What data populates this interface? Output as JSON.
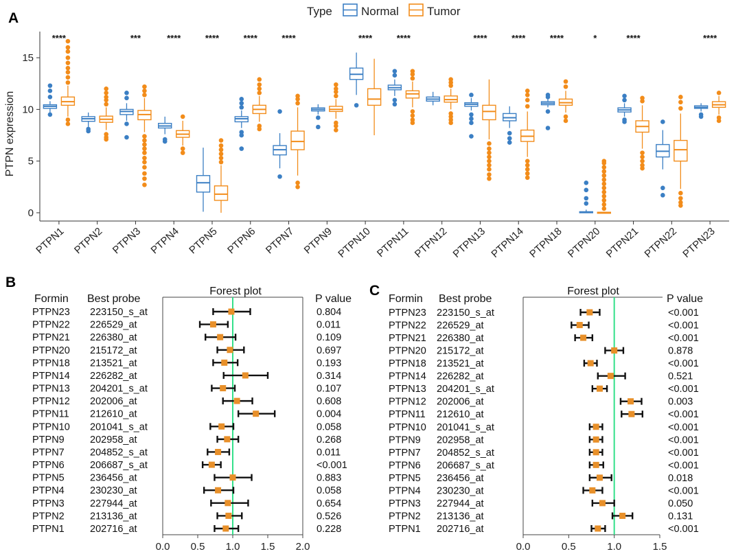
{
  "colors": {
    "normal": "#3B7FC4",
    "tumor": "#F28C1A",
    "refline": "#33E08A",
    "point": "#E8902A",
    "ci": "#111111"
  },
  "panelA": {
    "label": "A",
    "legend": {
      "title": "Type",
      "items": [
        {
          "name": "Normal"
        },
        {
          "name": "Tumor"
        }
      ]
    },
    "chart_data": {
      "type": "box",
      "title": "",
      "xlabel": "",
      "ylabel": "PTPN expression",
      "ylim": [
        -0.8,
        17
      ],
      "yticks": [
        0,
        5,
        10,
        15
      ],
      "categories": [
        "PTPN1",
        "PTPN2",
        "PTPN3",
        "PTPN4",
        "PTPN5",
        "PTPN6",
        "PTPN7",
        "PTPN9",
        "PTPN10",
        "PTPN11",
        "PTPN12",
        "PTPN13",
        "PTPN14",
        "PTPN18",
        "PTPN20",
        "PTPN21",
        "PTPN22",
        "PTPN23"
      ],
      "significance": [
        "****",
        "",
        "***",
        "****",
        "****",
        "****",
        "****",
        "",
        "****",
        "****",
        "",
        "****",
        "****",
        "****",
        "*",
        "****",
        "",
        "****"
      ],
      "series": [
        {
          "name": "Normal",
          "boxes": [
            {
              "q1": 10.1,
              "med": 10.3,
              "q3": 10.45,
              "wlo": 9.7,
              "whi": 10.8,
              "out": [
                9.5,
                11.2,
                11.8,
                12.3
              ]
            },
            {
              "q1": 8.85,
              "med": 9.1,
              "q3": 9.3,
              "wlo": 8.3,
              "whi": 9.7,
              "out": [
                7.9,
                8.1
              ]
            },
            {
              "q1": 9.5,
              "med": 9.8,
              "q3": 10.0,
              "wlo": 8.9,
              "whi": 10.6,
              "out": [
                8.6,
                7.3,
                11.1,
                11.6
              ]
            },
            {
              "q1": 8.2,
              "med": 8.4,
              "q3": 8.65,
              "wlo": 7.6,
              "whi": 9.3,
              "out": [
                7.1,
                6.9
              ]
            },
            {
              "q1": 2.0,
              "med": 2.9,
              "q3": 3.6,
              "wlo": 0.1,
              "whi": 6.3,
              "out": []
            },
            {
              "q1": 8.8,
              "med": 9.1,
              "q3": 9.3,
              "wlo": 8.2,
              "whi": 9.9,
              "out": [
                7.8,
                7.5,
                6.2,
                10.2,
                10.6,
                11.0
              ]
            },
            {
              "q1": 5.6,
              "med": 6.1,
              "q3": 6.5,
              "wlo": 4.3,
              "whi": 7.7,
              "out": [
                3.5,
                9.8
              ]
            },
            {
              "q1": 9.85,
              "med": 10.0,
              "q3": 10.15,
              "wlo": 9.5,
              "whi": 10.5,
              "out": [
                9.2,
                8.3
              ]
            },
            {
              "q1": 12.9,
              "med": 13.4,
              "q3": 14.0,
              "wlo": 11.4,
              "whi": 15.5,
              "out": [
                10.4
              ]
            },
            {
              "q1": 11.9,
              "med": 12.1,
              "q3": 12.35,
              "wlo": 11.3,
              "whi": 12.9,
              "out": [
                10.9,
                10.5,
                13.3,
                13.7
              ]
            },
            {
              "q1": 10.8,
              "med": 11.0,
              "q3": 11.2,
              "wlo": 10.4,
              "whi": 11.7,
              "out": []
            },
            {
              "q1": 10.3,
              "med": 10.5,
              "q3": 10.65,
              "wlo": 9.9,
              "whi": 11.1,
              "out": [
                9.5,
                9.1,
                8.7,
                7.4,
                11.4
              ]
            },
            {
              "q1": 8.9,
              "med": 9.2,
              "q3": 9.6,
              "wlo": 8.2,
              "whi": 10.3,
              "out": [
                7.7,
                7.2,
                6.8
              ]
            },
            {
              "q1": 10.45,
              "med": 10.6,
              "q3": 10.75,
              "wlo": 10.2,
              "whi": 11.0,
              "out": [
                9.8,
                8.2,
                11.2,
                11.4
              ]
            },
            {
              "q1": 0.0,
              "med": 0.05,
              "q3": 0.1,
              "wlo": 0.0,
              "whi": 0.3,
              "out": [
                0.9,
                1.4,
                2.2,
                2.9
              ]
            },
            {
              "q1": 9.75,
              "med": 9.95,
              "q3": 10.15,
              "wlo": 9.3,
              "whi": 10.6,
              "out": [
                9.0,
                8.8,
                10.9,
                11.3
              ]
            },
            {
              "q1": 5.4,
              "med": 5.95,
              "q3": 6.6,
              "wlo": 4.2,
              "whi": 8.0,
              "out": [
                2.4,
                1.7,
                8.8
              ]
            },
            {
              "q1": 10.1,
              "med": 10.2,
              "q3": 10.35,
              "wlo": 9.8,
              "whi": 10.6,
              "out": [
                9.5,
                9.3
              ]
            }
          ]
        },
        {
          "name": "Tumor",
          "boxes": [
            {
              "q1": 10.4,
              "med": 10.75,
              "q3": 11.2,
              "wlo": 9.3,
              "whi": 12.3,
              "out": [
                8.6,
                9.0,
                12.6,
                13.1,
                13.6,
                14.0,
                14.5,
                15.0,
                15.6,
                16.0,
                16.6
              ]
            },
            {
              "q1": 8.75,
              "med": 9.05,
              "q3": 9.35,
              "wlo": 8.0,
              "whi": 10.2,
              "out": [
                7.6,
                7.3,
                7.1,
                10.5,
                10.9,
                11.2,
                11.6,
                12.0
              ]
            },
            {
              "q1": 9.0,
              "med": 9.5,
              "q3": 9.9,
              "wlo": 7.8,
              "whi": 11.1,
              "out": [
                7.4,
                7.0,
                6.6,
                6.2,
                5.8,
                5.3,
                4.9,
                4.4,
                3.8,
                3.3,
                2.7,
                11.4,
                11.8,
                12.2
              ]
            },
            {
              "q1": 7.3,
              "med": 7.6,
              "q3": 7.95,
              "wlo": 6.5,
              "whi": 8.9,
              "out": [
                6.2,
                5.8,
                9.3
              ]
            },
            {
              "q1": 1.2,
              "med": 1.8,
              "q3": 2.6,
              "wlo": 0.0,
              "whi": 4.6,
              "out": [
                4.9,
                5.3,
                5.7,
                6.1,
                6.5,
                7.0
              ]
            },
            {
              "q1": 9.6,
              "med": 10.0,
              "q3": 10.4,
              "wlo": 8.8,
              "whi": 11.3,
              "out": [
                8.4,
                8.1,
                11.6,
                12.0,
                12.4,
                12.9
              ]
            },
            {
              "q1": 6.1,
              "med": 6.9,
              "q3": 7.9,
              "wlo": 3.6,
              "whi": 10.2,
              "out": [
                2.9,
                2.5,
                10.6,
                11.0,
                11.3
              ]
            },
            {
              "q1": 9.8,
              "med": 10.0,
              "q3": 10.3,
              "wlo": 9.1,
              "whi": 11.0,
              "out": [
                8.7,
                8.4,
                8.0,
                11.3,
                11.7,
                12.0,
                12.4
              ]
            },
            {
              "q1": 10.4,
              "med": 11.0,
              "q3": 12.0,
              "wlo": 7.5,
              "whi": 14.9,
              "out": []
            },
            {
              "q1": 11.1,
              "med": 11.5,
              "q3": 11.8,
              "wlo": 10.2,
              "whi": 12.7,
              "out": [
                9.8,
                9.4,
                9.0,
                8.7,
                13.0,
                13.4,
                13.7
              ]
            },
            {
              "q1": 10.7,
              "med": 10.95,
              "q3": 11.3,
              "wlo": 10.0,
              "whi": 12.0,
              "out": [
                9.6,
                9.3,
                9.0,
                8.7,
                12.3,
                12.6,
                12.9
              ]
            },
            {
              "q1": 9.0,
              "med": 9.8,
              "q3": 10.4,
              "wlo": 7.1,
              "whi": 12.9,
              "out": [
                6.7,
                6.2,
                5.8,
                5.4,
                5.0,
                4.6,
                4.2,
                3.7,
                3.3
              ]
            },
            {
              "q1": 6.9,
              "med": 7.4,
              "q3": 8.0,
              "wlo": 5.4,
              "whi": 9.8,
              "out": [
                5.0,
                4.6,
                4.2,
                3.8,
                3.4,
                10.3,
                10.9,
                11.4,
                11.8
              ]
            },
            {
              "q1": 10.4,
              "med": 10.65,
              "q3": 11.0,
              "wlo": 9.7,
              "whi": 11.8,
              "out": [
                9.3,
                8.9,
                12.2,
                12.7
              ]
            },
            {
              "q1": 0.0,
              "med": 0.0,
              "q3": 0.05,
              "wlo": 0.0,
              "whi": 0.1,
              "out": [
                0.4,
                0.8,
                1.2,
                1.6,
                2.0,
                2.4,
                2.8,
                3.2,
                3.6,
                4.0,
                4.4,
                4.8,
                5.0
              ]
            },
            {
              "q1": 7.8,
              "med": 8.35,
              "q3": 8.9,
              "wlo": 6.2,
              "whi": 10.4,
              "out": [
                5.8,
                5.4,
                5.0,
                4.6,
                4.3,
                10.8,
                11.1
              ]
            },
            {
              "q1": 5.0,
              "med": 6.1,
              "q3": 7.0,
              "wlo": 2.3,
              "whi": 9.6,
              "out": [
                1.9,
                1.4,
                1.0,
                0.7,
                10.1,
                10.7,
                11.2
              ]
            },
            {
              "q1": 10.2,
              "med": 10.45,
              "q3": 10.75,
              "wlo": 9.5,
              "whi": 11.3,
              "out": [
                9.2,
                8.9,
                11.6
              ]
            }
          ]
        }
      ]
    }
  },
  "panelB": {
    "label": "B",
    "header": {
      "formin": "Formin",
      "probe": "Best probe",
      "forest": "Forest plot",
      "pvalue": "P value"
    },
    "chart_data": {
      "type": "forest",
      "title": "Forest plot",
      "xlim": [
        0,
        2.0
      ],
      "xticks": [
        "0.0",
        "0.5",
        "1.0",
        "1.5",
        "2.0"
      ],
      "reference": 1.0,
      "rows": [
        {
          "gene": "PTPN23",
          "probe": "223150_s_at",
          "est": 0.98,
          "lo": 0.72,
          "hi": 1.25,
          "p": "0.804"
        },
        {
          "gene": "PTPN22",
          "probe": "226529_at",
          "est": 0.72,
          "lo": 0.53,
          "hi": 0.93,
          "p": "0.011"
        },
        {
          "gene": "PTPN21",
          "probe": "226380_at",
          "est": 0.82,
          "lo": 0.61,
          "hi": 1.04,
          "p": "0.109"
        },
        {
          "gene": "PTPN20",
          "probe": "215172_at",
          "est": 0.96,
          "lo": 0.78,
          "hi": 1.16,
          "p": "0.697"
        },
        {
          "gene": "PTPN18",
          "probe": "213521_at",
          "est": 0.88,
          "lo": 0.72,
          "hi": 1.07,
          "p": "0.193"
        },
        {
          "gene": "PTPN14",
          "probe": "226282_at",
          "est": 1.18,
          "lo": 0.87,
          "hi": 1.5,
          "p": "0.314"
        },
        {
          "gene": "PTPN13",
          "probe": "204201_s_at",
          "est": 0.86,
          "lo": 0.7,
          "hi": 1.03,
          "p": "0.107"
        },
        {
          "gene": "PTPN12",
          "probe": "202006_at",
          "est": 1.06,
          "lo": 0.86,
          "hi": 1.28,
          "p": "0.608"
        },
        {
          "gene": "PTPN11",
          "probe": "212610_at",
          "est": 1.33,
          "lo": 1.08,
          "hi": 1.6,
          "p": "0.004"
        },
        {
          "gene": "PTPN10",
          "probe": "201041_s_at",
          "est": 0.84,
          "lo": 0.68,
          "hi": 1.01,
          "p": "0.058"
        },
        {
          "gene": "PTPN9",
          "probe": "202958_at",
          "est": 0.92,
          "lo": 0.78,
          "hi": 1.08,
          "p": "0.268"
        },
        {
          "gene": "PTPN7",
          "probe": "204852_s_at",
          "est": 0.79,
          "lo": 0.64,
          "hi": 0.95,
          "p": "0.011"
        },
        {
          "gene": "PTPN6",
          "probe": "206687_s_at",
          "est": 0.7,
          "lo": 0.57,
          "hi": 0.83,
          "p": "<0.001"
        },
        {
          "gene": "PTPN5",
          "probe": "236456_at",
          "est": 1.0,
          "lo": 0.74,
          "hi": 1.27,
          "p": "0.883"
        },
        {
          "gene": "PTPN4",
          "probe": "230230_at",
          "est": 0.79,
          "lo": 0.59,
          "hi": 1.01,
          "p": "0.058"
        },
        {
          "gene": "PTPN3",
          "probe": "227944_at",
          "est": 0.93,
          "lo": 0.69,
          "hi": 1.22,
          "p": "0.654"
        },
        {
          "gene": "PTPN2",
          "probe": "213136_at",
          "est": 0.94,
          "lo": 0.78,
          "hi": 1.13,
          "p": "0.526"
        },
        {
          "gene": "PTPN1",
          "probe": "202716_at",
          "est": 0.9,
          "lo": 0.74,
          "hi": 1.08,
          "p": "0.228"
        }
      ]
    }
  },
  "panelC": {
    "label": "C",
    "header": {
      "formin": "Formin",
      "probe": "Best probe",
      "forest": "Forest plot",
      "pvalue": "P value"
    },
    "chart_data": {
      "type": "forest",
      "title": "Forest plot",
      "xlim": [
        0,
        1.5
      ],
      "xticks": [
        "0.0",
        "0.5",
        "1.0",
        "1.5"
      ],
      "reference": 1.0,
      "rows": [
        {
          "gene": "PTPN23",
          "probe": "223150_s_at",
          "est": 0.73,
          "lo": 0.63,
          "hi": 0.84,
          "p": "<0.001"
        },
        {
          "gene": "PTPN22",
          "probe": "226529_at",
          "est": 0.62,
          "lo": 0.53,
          "hi": 0.72,
          "p": "<0.001"
        },
        {
          "gene": "PTPN21",
          "probe": "226380_at",
          "est": 0.66,
          "lo": 0.57,
          "hi": 0.76,
          "p": "<0.001"
        },
        {
          "gene": "PTPN20",
          "probe": "215172_at",
          "est": 1.0,
          "lo": 0.9,
          "hi": 1.1,
          "p": "0.878"
        },
        {
          "gene": "PTPN18",
          "probe": "213521_at",
          "est": 0.74,
          "lo": 0.67,
          "hi": 0.81,
          "p": "<0.001"
        },
        {
          "gene": "PTPN14",
          "probe": "226282_at",
          "est": 0.96,
          "lo": 0.82,
          "hi": 1.12,
          "p": "0.521"
        },
        {
          "gene": "PTPN13",
          "probe": "204201_s_at",
          "est": 0.84,
          "lo": 0.76,
          "hi": 0.92,
          "p": "<0.001"
        },
        {
          "gene": "PTPN12",
          "probe": "202006_at",
          "est": 1.18,
          "lo": 1.07,
          "hi": 1.3,
          "p": "0.003"
        },
        {
          "gene": "PTPN11",
          "probe": "212610_at",
          "est": 1.19,
          "lo": 1.08,
          "hi": 1.31,
          "p": "<0.001"
        },
        {
          "gene": "PTPN10",
          "probe": "201041_s_at",
          "est": 0.8,
          "lo": 0.73,
          "hi": 0.87,
          "p": "<0.001"
        },
        {
          "gene": "PTPN9",
          "probe": "202958_at",
          "est": 0.8,
          "lo": 0.73,
          "hi": 0.87,
          "p": "<0.001"
        },
        {
          "gene": "PTPN7",
          "probe": "204852_s_at",
          "est": 0.8,
          "lo": 0.73,
          "hi": 0.87,
          "p": "<0.001"
        },
        {
          "gene": "PTPN6",
          "probe": "206687_s_at",
          "est": 0.8,
          "lo": 0.73,
          "hi": 0.88,
          "p": "<0.001"
        },
        {
          "gene": "PTPN5",
          "probe": "236456_at",
          "est": 0.84,
          "lo": 0.73,
          "hi": 0.97,
          "p": "0.018"
        },
        {
          "gene": "PTPN4",
          "probe": "230230_at",
          "est": 0.76,
          "lo": 0.66,
          "hi": 0.87,
          "p": "<0.001"
        },
        {
          "gene": "PTPN3",
          "probe": "227944_at",
          "est": 0.87,
          "lo": 0.76,
          "hi": 1.0,
          "p": "0.050"
        },
        {
          "gene": "PTPN2",
          "probe": "213136_at",
          "est": 1.09,
          "lo": 0.98,
          "hi": 1.2,
          "p": "0.131"
        },
        {
          "gene": "PTPN1",
          "probe": "202716_at",
          "est": 0.82,
          "lo": 0.75,
          "hi": 0.9,
          "p": "<0.001"
        }
      ]
    }
  }
}
